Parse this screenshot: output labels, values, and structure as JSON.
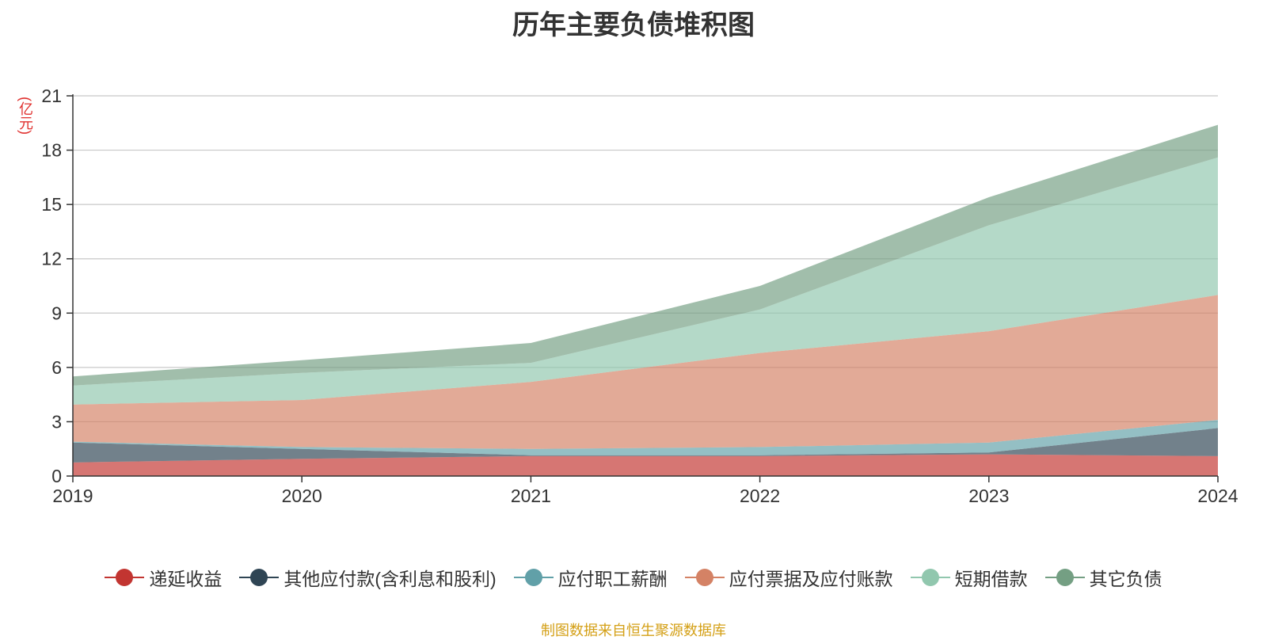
{
  "chart_data": {
    "type": "area",
    "stacked": true,
    "title": "历年主要负债堆积图",
    "unit_label": "(亿元)",
    "x": [
      "2019",
      "2020",
      "2021",
      "2022",
      "2023",
      "2024"
    ],
    "ylim": [
      0,
      21
    ],
    "yticks": [
      "0",
      "3",
      "6",
      "9",
      "12",
      "15",
      "18",
      "21"
    ],
    "grid": true,
    "legend_position": "bottom",
    "series": [
      {
        "name": "递延收益",
        "color": "#c23531",
        "values": [
          0.75,
          0.95,
          1.1,
          1.1,
          1.2,
          1.1
        ]
      },
      {
        "name": "其他应付款(含利息和股利)",
        "color": "#2f4554",
        "values": [
          1.1,
          0.55,
          0.05,
          0.05,
          0.1,
          1.55
        ]
      },
      {
        "name": "应付职工薪酬",
        "color": "#61a0a8",
        "values": [
          0.05,
          0.1,
          0.35,
          0.45,
          0.55,
          0.45
        ]
      },
      {
        "name": "应付票据及应付账款",
        "color": "#d48265",
        "values": [
          2.05,
          2.6,
          3.7,
          5.2,
          6.15,
          6.9
        ]
      },
      {
        "name": "短期借款",
        "color": "#91c7ae",
        "values": [
          1.05,
          1.5,
          1.05,
          2.4,
          5.85,
          7.6
        ]
      },
      {
        "name": "其它负债",
        "color": "#749f83",
        "values": [
          0.5,
          0.7,
          1.1,
          1.3,
          1.55,
          1.8
        ]
      }
    ],
    "source": "制图数据来自恒生聚源数据库"
  }
}
